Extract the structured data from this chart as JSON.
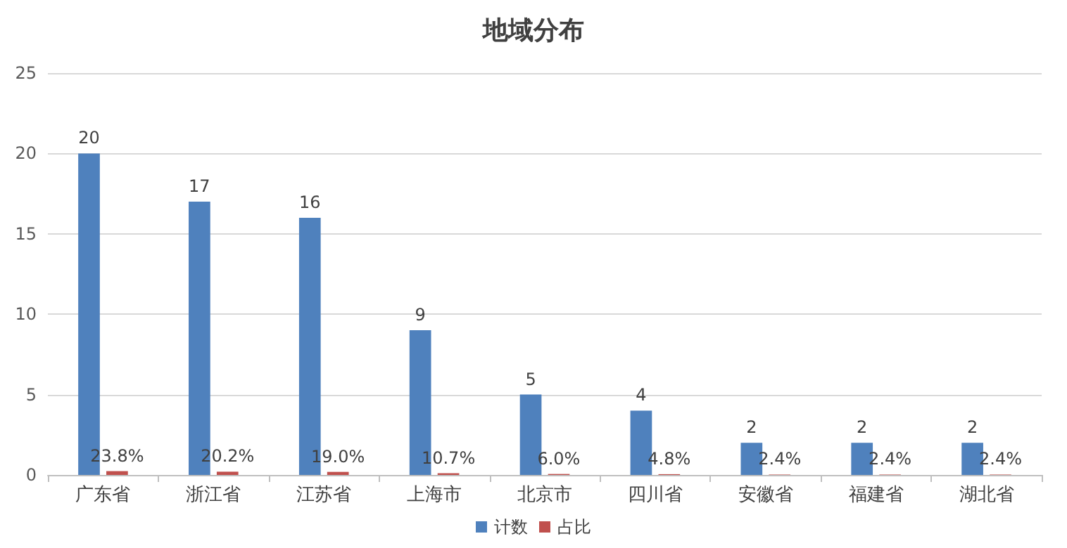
{
  "chart_data": {
    "type": "bar",
    "title": "地域分布",
    "categories": [
      "广东省",
      "浙江省",
      "江苏省",
      "上海市",
      "北京市",
      "四川省",
      "安徽省",
      "福建省",
      "湖北省"
    ],
    "series": [
      {
        "name": "计数",
        "color": "#4f81bd",
        "values": [
          20,
          17,
          16,
          9,
          5,
          4,
          2,
          2,
          2
        ],
        "value_labels": [
          "20",
          "17",
          "16",
          "9",
          "5",
          "4",
          "2",
          "2",
          "2"
        ]
      },
      {
        "name": "占比",
        "color": "#c0504d",
        "values": [
          0.238,
          0.202,
          0.19,
          0.107,
          0.06,
          0.048,
          0.024,
          0.024,
          0.024
        ],
        "value_labels": [
          "23.8%",
          "20.2%",
          "19.0%",
          "10.7%",
          "6.0%",
          "4.8%",
          "2.4%",
          "2.4%",
          "2.4%"
        ]
      }
    ],
    "ylim": [
      0,
      25
    ],
    "yticks": [
      0,
      5,
      10,
      15,
      20,
      25
    ],
    "grid": "y",
    "legend": "bottom"
  }
}
